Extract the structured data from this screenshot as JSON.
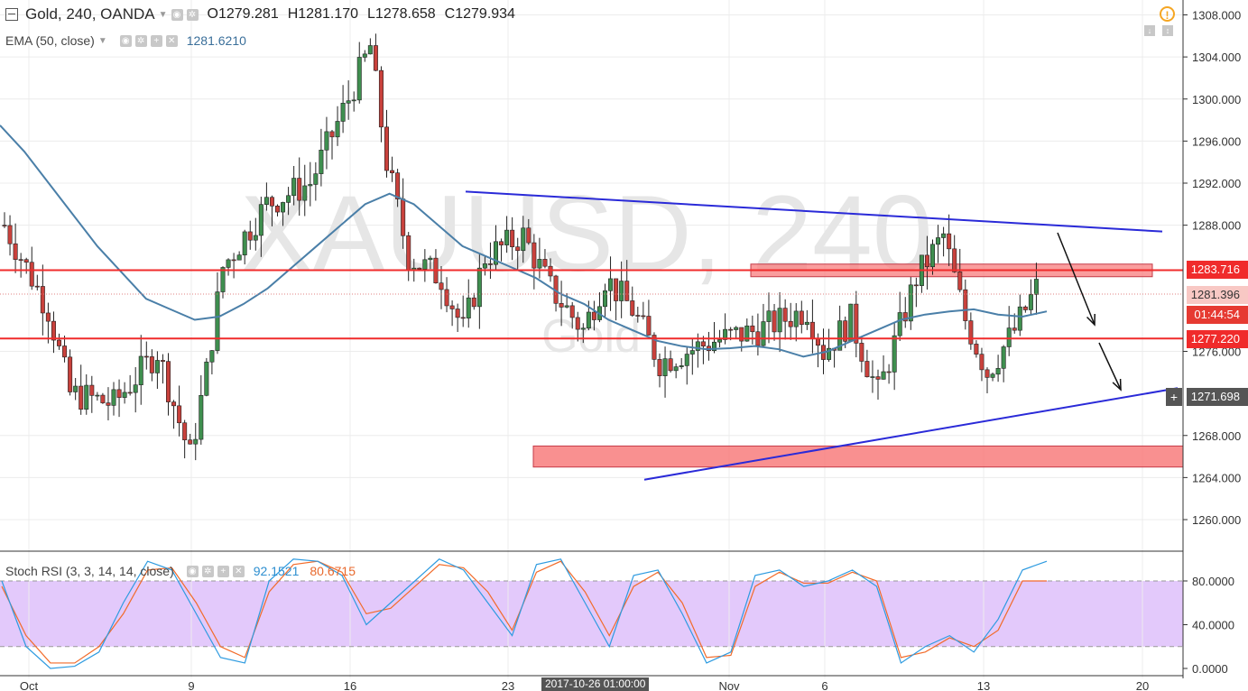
{
  "header": {
    "symbol_collapse_icon": "minus-square-icon",
    "title": "Gold, 240, OANDA",
    "o_label": "O",
    "o_value": "1279.281",
    "h_label": "H",
    "h_value": "1281.170",
    "l_label": "L",
    "l_value": "1278.658",
    "c_label": "C",
    "c_value": "1279.934"
  },
  "indicators": {
    "ema": {
      "label": "EMA (50, close)",
      "value": "1281.6210",
      "color": "#4a7fa8"
    },
    "stoch": {
      "label": "Stoch RSI (3, 3, 14, 14, close)",
      "k_value": "92.1521",
      "d_value": "80.6715",
      "k_color": "#2e9be0",
      "d_color": "#f26b2a"
    }
  },
  "watermark": {
    "symbol": "XAUUSD, 240",
    "name": "Gold"
  },
  "price_tags": {
    "res": "1283.716",
    "last": "1281.396",
    "countdown": "01:44:54",
    "sup": "1277.220",
    "cursor": "1271.698"
  },
  "crosshair_date": "2017-10-26 01:00:00",
  "colors": {
    "up": "#3f8f4f",
    "down": "#c9413c",
    "red_line": "#f02b2b",
    "trend": "#2a2ad8",
    "zone_fill": "#f87c7c",
    "stoch_band": "#e3c9fb",
    "axis_bg": "#ffffff"
  },
  "chart_data": {
    "type": "candlestick",
    "timeframe": "240",
    "y_ticks": [
      "1308.000",
      "1304.000",
      "1300.000",
      "1296.000",
      "1292.000",
      "1288.000",
      "1276.000",
      "1268.000",
      "1264.000",
      "1260.000"
    ],
    "x_ticks": [
      "Oct",
      "9",
      "16",
      "23",
      "Nov",
      "6",
      "13",
      "20"
    ],
    "horizontal_levels": [
      1283.716,
      1277.22
    ],
    "zones": [
      {
        "top": 1284.3,
        "bottom": 1283.1
      },
      {
        "top": 1267.0,
        "bottom": 1265.0
      }
    ],
    "trendlines": [
      {
        "from_price": 1291.2,
        "to_price": 1287.4
      },
      {
        "from_price": 1263.8,
        "to_price": 1272.5
      }
    ],
    "stoch_ticks": [
      "80.0000",
      "40.0000",
      "0.0000"
    ],
    "stoch_band": [
      20,
      80
    ],
    "series": [
      {
        "name": "EMA (50, close)",
        "values": [
          1297.5,
          1295,
          1292,
          1289,
          1286,
          1283.5,
          1281,
          1280,
          1279,
          1279.3,
          1280.5,
          1282,
          1284,
          1286,
          1288,
          1290,
          1291,
          1290,
          1288,
          1286,
          1285,
          1284,
          1283,
          1281.5,
          1280.5,
          1279,
          1278,
          1277,
          1276.5,
          1276.2,
          1276.3,
          1276.5,
          1276.2,
          1275.5,
          1276,
          1277,
          1278,
          1279,
          1279.5,
          1279.8,
          1280,
          1279.5,
          1279.3,
          1279.8
        ]
      },
      {
        "name": "Stoch RSI K",
        "values": [
          80,
          20,
          0,
          2,
          15,
          60,
          98,
          90,
          50,
          10,
          5,
          80,
          100,
          98,
          85,
          40,
          60,
          80,
          100,
          90,
          60,
          30,
          95,
          100,
          60,
          20,
          85,
          90,
          50,
          5,
          15,
          85,
          90,
          75,
          80,
          90,
          75,
          5,
          20,
          30,
          15,
          45,
          90,
          98
        ]
      },
      {
        "name": "Stoch RSI D",
        "values": [
          75,
          30,
          5,
          5,
          20,
          50,
          90,
          92,
          60,
          20,
          10,
          70,
          95,
          98,
          88,
          50,
          55,
          75,
          95,
          92,
          70,
          35,
          88,
          98,
          70,
          30,
          75,
          88,
          60,
          10,
          12,
          75,
          88,
          78,
          78,
          88,
          80,
          10,
          15,
          28,
          20,
          35,
          80,
          80
        ]
      }
    ]
  }
}
